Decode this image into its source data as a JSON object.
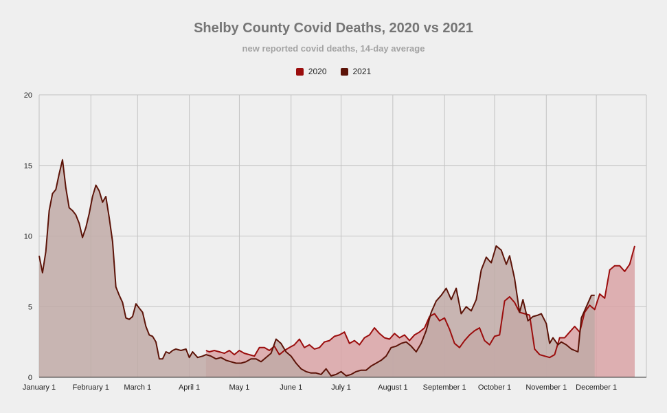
{
  "chart_data": {
    "type": "area",
    "title": "Shelby County Covid Deaths, 2020 vs 2021",
    "subtitle": "new reported covid deaths, 14-day average",
    "xlabel": "",
    "ylabel": "",
    "ylim": [
      0,
      20
    ],
    "yticks": [
      "0",
      "5",
      "10",
      "15",
      "20"
    ],
    "xlim": [
      1,
      365
    ],
    "xticks": [
      {
        "label": "January 1",
        "day": 1
      },
      {
        "label": "February 1",
        "day": 32
      },
      {
        "label": "March 1",
        "day": 60
      },
      {
        "label": "April 1",
        "day": 91
      },
      {
        "label": "May 1",
        "day": 121
      },
      {
        "label": "June 1",
        "day": 152
      },
      {
        "label": "July 1",
        "day": 182
      },
      {
        "label": "August 1",
        "day": 213
      },
      {
        "label": "September 1",
        "day": 244
      },
      {
        "label": "October 1",
        "day": 274
      },
      {
        "label": "November 1",
        "day": 305
      },
      {
        "label": "December 1",
        "day": 335
      }
    ],
    "legend_position": "top",
    "series": [
      {
        "name": "2020",
        "color": "#9b0d0d",
        "fill": "#d9a3a6",
        "points": [
          [
            101,
            1.9
          ],
          [
            103,
            1.8
          ],
          [
            106,
            1.9
          ],
          [
            109,
            1.8
          ],
          [
            112,
            1.7
          ],
          [
            115,
            1.9
          ],
          [
            118,
            1.6
          ],
          [
            121,
            1.9
          ],
          [
            124,
            1.7
          ],
          [
            127,
            1.6
          ],
          [
            130,
            1.5
          ],
          [
            133,
            2.1
          ],
          [
            136,
            2.1
          ],
          [
            139,
            1.9
          ],
          [
            142,
            2.2
          ],
          [
            145,
            1.6
          ],
          [
            148,
            1.9
          ],
          [
            151,
            2.1
          ],
          [
            154,
            2.3
          ],
          [
            157,
            2.7
          ],
          [
            160,
            2.1
          ],
          [
            163,
            2.3
          ],
          [
            166,
            2.0
          ],
          [
            169,
            2.1
          ],
          [
            172,
            2.5
          ],
          [
            175,
            2.6
          ],
          [
            178,
            2.9
          ],
          [
            181,
            3.0
          ],
          [
            184,
            3.2
          ],
          [
            187,
            2.4
          ],
          [
            190,
            2.6
          ],
          [
            193,
            2.3
          ],
          [
            196,
            2.8
          ],
          [
            199,
            3.0
          ],
          [
            202,
            3.5
          ],
          [
            205,
            3.1
          ],
          [
            208,
            2.8
          ],
          [
            211,
            2.7
          ],
          [
            214,
            3.1
          ],
          [
            217,
            2.8
          ],
          [
            220,
            3.0
          ],
          [
            223,
            2.6
          ],
          [
            226,
            3.0
          ],
          [
            229,
            3.2
          ],
          [
            232,
            3.5
          ],
          [
            235,
            4.3
          ],
          [
            238,
            4.5
          ],
          [
            241,
            4.0
          ],
          [
            244,
            4.2
          ],
          [
            247,
            3.4
          ],
          [
            250,
            2.4
          ],
          [
            253,
            2.1
          ],
          [
            256,
            2.6
          ],
          [
            259,
            3.0
          ],
          [
            262,
            3.3
          ],
          [
            265,
            3.5
          ],
          [
            268,
            2.6
          ],
          [
            271,
            2.3
          ],
          [
            274,
            2.9
          ],
          [
            277,
            3.0
          ],
          [
            280,
            5.4
          ],
          [
            283,
            5.7
          ],
          [
            286,
            5.3
          ],
          [
            289,
            4.6
          ],
          [
            292,
            4.5
          ],
          [
            295,
            4.4
          ],
          [
            298,
            2.0
          ],
          [
            301,
            1.6
          ],
          [
            304,
            1.5
          ],
          [
            307,
            1.4
          ],
          [
            310,
            1.6
          ],
          [
            313,
            2.8
          ],
          [
            316,
            2.8
          ],
          [
            319,
            3.2
          ],
          [
            322,
            3.6
          ],
          [
            325,
            3.2
          ],
          [
            328,
            4.6
          ],
          [
            331,
            5.1
          ],
          [
            334,
            4.8
          ],
          [
            337,
            5.9
          ],
          [
            340,
            5.6
          ],
          [
            343,
            7.6
          ],
          [
            346,
            7.9
          ],
          [
            349,
            7.9
          ],
          [
            352,
            7.5
          ],
          [
            355,
            8.0
          ],
          [
            358,
            9.3
          ]
        ]
      },
      {
        "name": "2021",
        "color": "#5c1308",
        "fill": "#c1aaa7",
        "points": [
          [
            1,
            8.6
          ],
          [
            3,
            7.4
          ],
          [
            5,
            8.9
          ],
          [
            7,
            11.8
          ],
          [
            9,
            13.0
          ],
          [
            11,
            13.3
          ],
          [
            13,
            14.4
          ],
          [
            15,
            15.4
          ],
          [
            17,
            13.4
          ],
          [
            19,
            12.0
          ],
          [
            21,
            11.8
          ],
          [
            23,
            11.5
          ],
          [
            25,
            10.9
          ],
          [
            27,
            9.9
          ],
          [
            29,
            10.6
          ],
          [
            31,
            11.6
          ],
          [
            33,
            12.8
          ],
          [
            35,
            13.6
          ],
          [
            37,
            13.2
          ],
          [
            39,
            12.4
          ],
          [
            41,
            12.8
          ],
          [
            43,
            11.3
          ],
          [
            45,
            9.6
          ],
          [
            47,
            6.4
          ],
          [
            49,
            5.8
          ],
          [
            51,
            5.3
          ],
          [
            53,
            4.2
          ],
          [
            55,
            4.1
          ],
          [
            57,
            4.3
          ],
          [
            59,
            5.2
          ],
          [
            61,
            4.9
          ],
          [
            63,
            4.6
          ],
          [
            65,
            3.6
          ],
          [
            67,
            3.0
          ],
          [
            69,
            2.9
          ],
          [
            71,
            2.5
          ],
          [
            73,
            1.3
          ],
          [
            75,
            1.3
          ],
          [
            77,
            1.8
          ],
          [
            79,
            1.7
          ],
          [
            81,
            1.9
          ],
          [
            83,
            2.0
          ],
          [
            86,
            1.9
          ],
          [
            89,
            2.0
          ],
          [
            91,
            1.4
          ],
          [
            93,
            1.8
          ],
          [
            96,
            1.4
          ],
          [
            99,
            1.5
          ],
          [
            101,
            1.6
          ],
          [
            104,
            1.5
          ],
          [
            107,
            1.3
          ],
          [
            110,
            1.4
          ],
          [
            113,
            1.2
          ],
          [
            116,
            1.1
          ],
          [
            119,
            1.0
          ],
          [
            122,
            1.0
          ],
          [
            125,
            1.1
          ],
          [
            128,
            1.3
          ],
          [
            131,
            1.3
          ],
          [
            134,
            1.1
          ],
          [
            137,
            1.4
          ],
          [
            140,
            1.7
          ],
          [
            143,
            2.7
          ],
          [
            146,
            2.4
          ],
          [
            149,
            1.8
          ],
          [
            152,
            1.5
          ],
          [
            155,
            1.0
          ],
          [
            158,
            0.6
          ],
          [
            161,
            0.4
          ],
          [
            164,
            0.3
          ],
          [
            167,
            0.3
          ],
          [
            170,
            0.2
          ],
          [
            173,
            0.6
          ],
          [
            176,
            0.1
          ],
          [
            179,
            0.2
          ],
          [
            182,
            0.4
          ],
          [
            185,
            0.1
          ],
          [
            188,
            0.2
          ],
          [
            191,
            0.4
          ],
          [
            194,
            0.5
          ],
          [
            197,
            0.5
          ],
          [
            200,
            0.8
          ],
          [
            203,
            1.0
          ],
          [
            206,
            1.2
          ],
          [
            209,
            1.5
          ],
          [
            212,
            2.1
          ],
          [
            215,
            2.2
          ],
          [
            218,
            2.4
          ],
          [
            221,
            2.5
          ],
          [
            224,
            2.2
          ],
          [
            227,
            1.8
          ],
          [
            230,
            2.4
          ],
          [
            233,
            3.3
          ],
          [
            236,
            4.6
          ],
          [
            239,
            5.4
          ],
          [
            242,
            5.8
          ],
          [
            245,
            6.3
          ],
          [
            248,
            5.5
          ],
          [
            251,
            6.3
          ],
          [
            254,
            4.5
          ],
          [
            257,
            5.0
          ],
          [
            260,
            4.7
          ],
          [
            263,
            5.5
          ],
          [
            266,
            7.6
          ],
          [
            269,
            8.5
          ],
          [
            272,
            8.1
          ],
          [
            275,
            9.3
          ],
          [
            278,
            9.0
          ],
          [
            281,
            8.0
          ],
          [
            283,
            8.6
          ],
          [
            286,
            7.0
          ],
          [
            289,
            4.6
          ],
          [
            291,
            5.5
          ],
          [
            294,
            4.0
          ],
          [
            297,
            4.3
          ],
          [
            300,
            4.4
          ],
          [
            302,
            4.5
          ],
          [
            305,
            3.8
          ],
          [
            307,
            2.4
          ],
          [
            309,
            2.8
          ],
          [
            312,
            2.3
          ],
          [
            314,
            2.5
          ],
          [
            317,
            2.3
          ],
          [
            320,
            2.0
          ],
          [
            322,
            1.9
          ],
          [
            324,
            1.8
          ],
          [
            326,
            4.2
          ],
          [
            329,
            5.0
          ],
          [
            332,
            5.8
          ],
          [
            334,
            5.8
          ]
        ]
      }
    ]
  }
}
